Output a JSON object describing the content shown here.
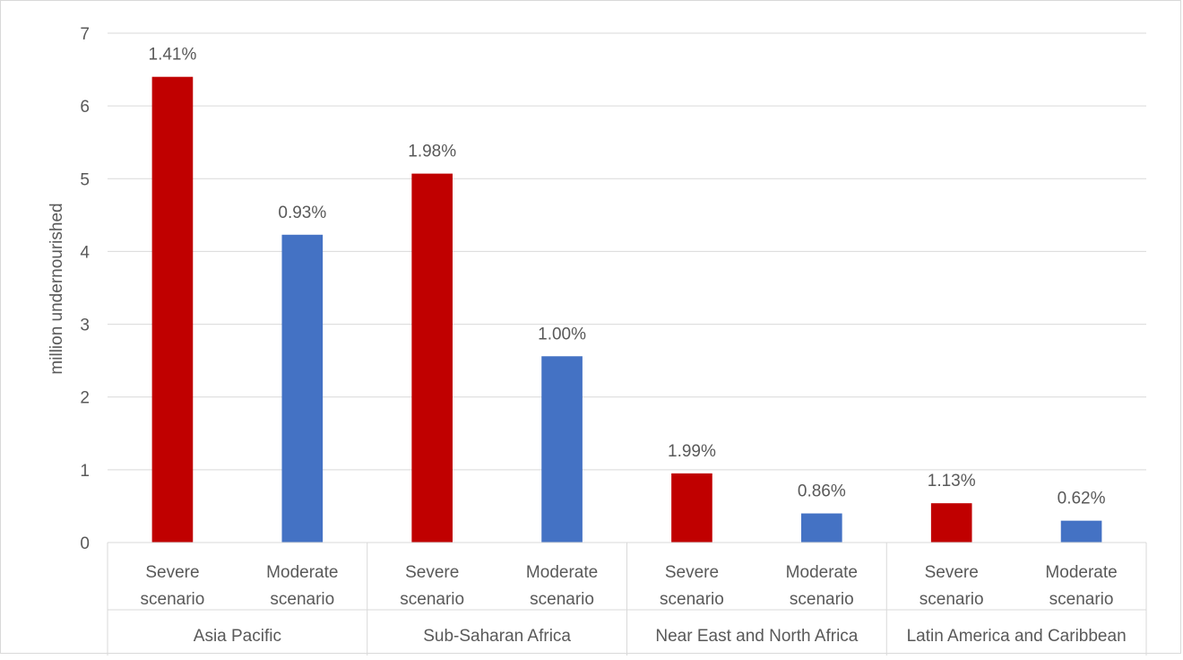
{
  "chart_data": {
    "type": "bar",
    "ylabel": "million undernourished",
    "ylim": [
      0,
      7
    ],
    "yticks": [
      "0",
      "1",
      "2",
      "3",
      "4",
      "5",
      "6",
      "7"
    ],
    "grid": true,
    "legend": "none",
    "groups": [
      {
        "name": "Asia Pacific",
        "bars": [
          {
            "category": "Severe scenario",
            "category_lines": [
              "Severe",
              "scenario"
            ],
            "value": 6.4,
            "label": "1.41%",
            "color": "#C00000"
          },
          {
            "category": "Moderate scenario",
            "category_lines": [
              "Moderate",
              "scenario"
            ],
            "value": 4.23,
            "label": "0.93%",
            "color": "#4472C4"
          }
        ]
      },
      {
        "name": "Sub-Saharan Africa",
        "bars": [
          {
            "category": "Severe scenario",
            "category_lines": [
              "Severe",
              "scenario"
            ],
            "value": 5.07,
            "label": "1.98%",
            "color": "#C00000"
          },
          {
            "category": "Moderate scenario",
            "category_lines": [
              "Moderate",
              "scenario"
            ],
            "value": 2.56,
            "label": "1.00%",
            "color": "#4472C4"
          }
        ]
      },
      {
        "name": "Near East and North Africa",
        "bars": [
          {
            "category": "Severe scenario",
            "category_lines": [
              "Severe",
              "scenario"
            ],
            "value": 0.95,
            "label": "1.99%",
            "color": "#C00000"
          },
          {
            "category": "Moderate scenario",
            "category_lines": [
              "Moderate",
              "scenario"
            ],
            "value": 0.4,
            "label": "0.86%",
            "color": "#4472C4"
          }
        ]
      },
      {
        "name": "Latin America and Caribbean",
        "bars": [
          {
            "category": "Severe scenario",
            "category_lines": [
              "Severe",
              "scenario"
            ],
            "value": 0.54,
            "label": "1.13%",
            "color": "#C00000"
          },
          {
            "category": "Moderate scenario",
            "category_lines": [
              "Moderate",
              "scenario"
            ],
            "value": 0.3,
            "label": "0.62%",
            "color": "#4472C4"
          }
        ]
      }
    ]
  }
}
